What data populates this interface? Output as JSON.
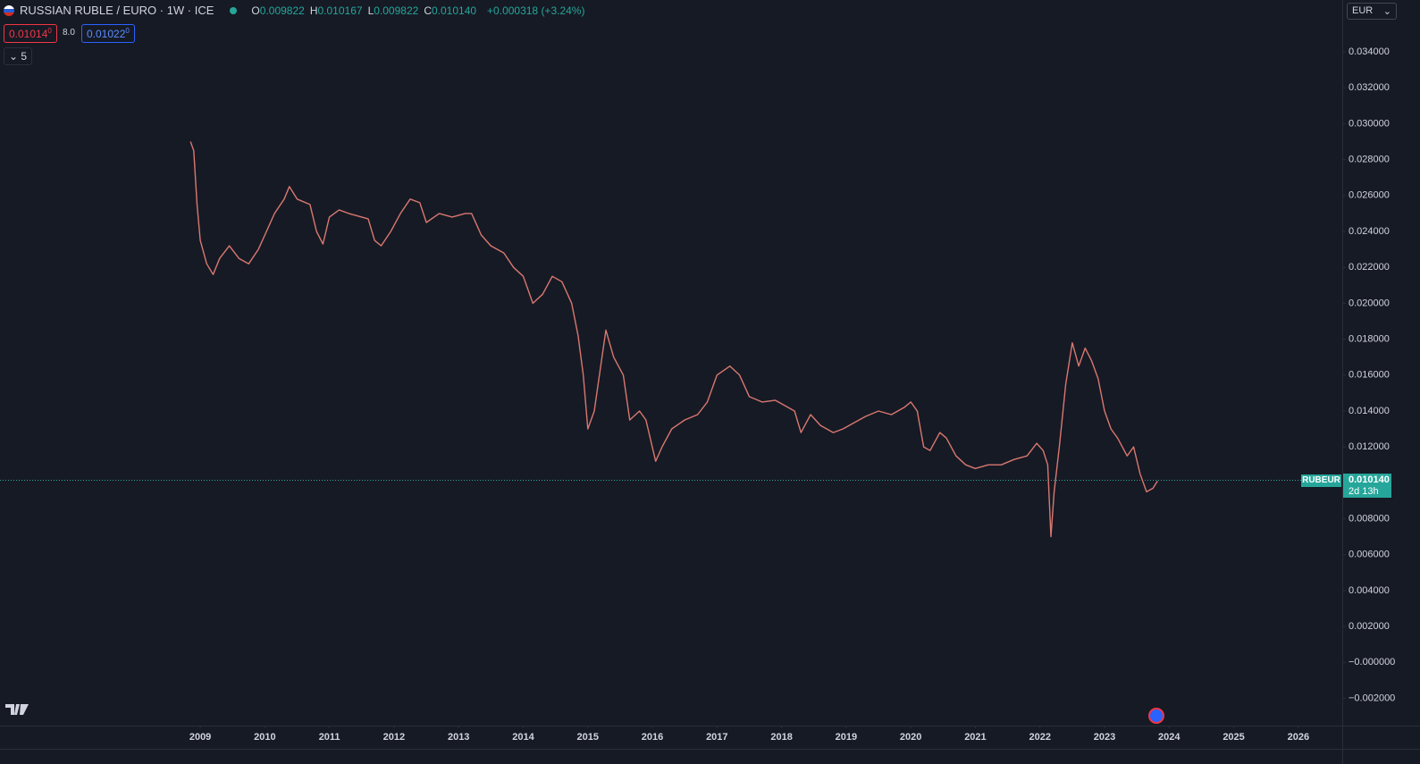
{
  "chart_data": {
    "type": "line",
    "title": "RUSSIAN RUBLE / EURO · 1W · ICE",
    "ohlc": [
      {
        "label": "O",
        "value": "0.009822"
      },
      {
        "label": "H",
        "value": "0.010167"
      },
      {
        "label": "L",
        "value": "0.009822"
      },
      {
        "label": "C",
        "value": "0.010140"
      }
    ],
    "change": "+0.000318 (+3.24%)",
    "bid": {
      "value": "0.01014",
      "fraction": "0"
    },
    "spread": "8.0",
    "ask": {
      "value": "0.01022",
      "fraction": "0"
    },
    "indicators": "5",
    "currency": "EUR",
    "symbol": "RUBEUR",
    "last_price": 0.01014,
    "last_price_label": "0.010140",
    "countdown": "2d 13h",
    "x": [
      2008.85,
      2008.9,
      2008.95,
      2009.0,
      2009.1,
      2009.2,
      2009.3,
      2009.45,
      2009.6,
      2009.75,
      2009.9,
      2010.0,
      2010.15,
      2010.3,
      2010.38,
      2010.5,
      2010.7,
      2010.8,
      2010.9,
      2011.0,
      2011.15,
      2011.3,
      2011.5,
      2011.6,
      2011.7,
      2011.8,
      2011.95,
      2012.1,
      2012.25,
      2012.4,
      2012.5,
      2012.7,
      2012.9,
      2013.1,
      2013.2,
      2013.35,
      2013.5,
      2013.7,
      2013.85,
      2014.0,
      2014.15,
      2014.3,
      2014.45,
      2014.6,
      2014.75,
      2014.85,
      2014.93,
      2015.0,
      2015.1,
      2015.2,
      2015.28,
      2015.4,
      2015.55,
      2015.65,
      2015.8,
      2015.9,
      2016.05,
      2016.15,
      2016.3,
      2016.5,
      2016.7,
      2016.85,
      2017.0,
      2017.2,
      2017.35,
      2017.5,
      2017.7,
      2017.9,
      2018.05,
      2018.2,
      2018.3,
      2018.45,
      2018.6,
      2018.8,
      2018.95,
      2019.1,
      2019.3,
      2019.5,
      2019.7,
      2019.9,
      2020.0,
      2020.1,
      2020.2,
      2020.3,
      2020.45,
      2020.55,
      2020.7,
      2020.85,
      2021.0,
      2021.2,
      2021.4,
      2021.6,
      2021.8,
      2021.95,
      2022.05,
      2022.12,
      2022.17,
      2022.22,
      2022.3,
      2022.4,
      2022.5,
      2022.6,
      2022.7,
      2022.8,
      2022.9,
      2023.0,
      2023.1,
      2023.2,
      2023.35,
      2023.45,
      2023.55,
      2023.65,
      2023.75,
      2023.82
    ],
    "series": [
      {
        "color": "#d9786f",
        "values": [
          0.029,
          0.0285,
          0.0255,
          0.0235,
          0.0222,
          0.0216,
          0.0225,
          0.0232,
          0.0225,
          0.0222,
          0.023,
          0.0238,
          0.025,
          0.0258,
          0.0265,
          0.0258,
          0.0255,
          0.024,
          0.0233,
          0.0248,
          0.0252,
          0.025,
          0.0248,
          0.0247,
          0.0235,
          0.0232,
          0.024,
          0.025,
          0.0258,
          0.0256,
          0.0245,
          0.025,
          0.0248,
          0.025,
          0.025,
          0.0238,
          0.0232,
          0.0228,
          0.022,
          0.0215,
          0.02,
          0.0205,
          0.0215,
          0.0212,
          0.02,
          0.0182,
          0.016,
          0.013,
          0.014,
          0.0165,
          0.0185,
          0.017,
          0.016,
          0.0135,
          0.014,
          0.0135,
          0.0112,
          0.012,
          0.013,
          0.0135,
          0.0138,
          0.0145,
          0.016,
          0.0165,
          0.016,
          0.0148,
          0.0145,
          0.0146,
          0.0143,
          0.014,
          0.0128,
          0.0138,
          0.0132,
          0.0128,
          0.013,
          0.0133,
          0.0137,
          0.014,
          0.0138,
          0.0142,
          0.0145,
          0.014,
          0.012,
          0.0118,
          0.0128,
          0.0125,
          0.0115,
          0.011,
          0.0108,
          0.011,
          0.011,
          0.0113,
          0.0115,
          0.0122,
          0.0118,
          0.011,
          0.007,
          0.0095,
          0.012,
          0.0155,
          0.0178,
          0.0165,
          0.0175,
          0.0168,
          0.0158,
          0.014,
          0.013,
          0.0125,
          0.0115,
          0.012,
          0.0105,
          0.0095,
          0.0097,
          0.0101
        ]
      }
    ],
    "xlim": [
      2005.9,
      2026.68
    ],
    "ylim": [
      -0.00352,
      0.03689
    ],
    "xticks": [
      2009,
      2010,
      2011,
      2012,
      2013,
      2014,
      2015,
      2016,
      2017,
      2018,
      2019,
      2020,
      2021,
      2022,
      2023,
      2024,
      2025,
      2026
    ],
    "yticks": [
      {
        "value": 0.034,
        "label": "0.034000"
      },
      {
        "value": 0.032,
        "label": "0.032000"
      },
      {
        "value": 0.03,
        "label": "0.030000"
      },
      {
        "value": 0.028,
        "label": "0.028000"
      },
      {
        "value": 0.026,
        "label": "0.026000"
      },
      {
        "value": 0.024,
        "label": "0.024000"
      },
      {
        "value": 0.022,
        "label": "0.022000"
      },
      {
        "value": 0.02,
        "label": "0.020000"
      },
      {
        "value": 0.018,
        "label": "0.018000"
      },
      {
        "value": 0.016,
        "label": "0.016000"
      },
      {
        "value": 0.014,
        "label": "0.014000"
      },
      {
        "value": 0.012,
        "label": "0.012000"
      },
      {
        "value": 0.008,
        "label": "0.008000"
      },
      {
        "value": 0.006,
        "label": "0.006000"
      },
      {
        "value": 0.004,
        "label": "0.004000"
      },
      {
        "value": 0.002,
        "label": "0.002000"
      },
      {
        "value": 0,
        "label": "−0.000000"
      },
      {
        "value": -0.002,
        "label": "−0.002000"
      }
    ],
    "grid": false
  }
}
